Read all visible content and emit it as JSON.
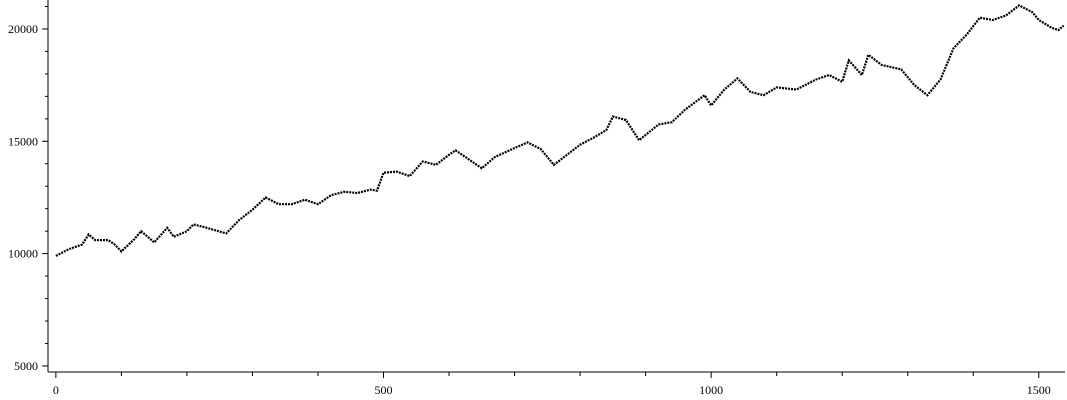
{
  "chart_data": {
    "type": "line",
    "color": "#000000",
    "x": [
      0,
      20,
      40,
      50,
      60,
      80,
      90,
      100,
      120,
      130,
      150,
      170,
      180,
      200,
      210,
      230,
      260,
      280,
      300,
      320,
      340,
      360,
      380,
      400,
      420,
      440,
      460,
      480,
      490,
      500,
      520,
      540,
      560,
      580,
      600,
      610,
      630,
      650,
      670,
      700,
      720,
      740,
      760,
      780,
      800,
      820,
      840,
      850,
      870,
      890,
      920,
      940,
      960,
      990,
      1000,
      1020,
      1040,
      1060,
      1080,
      1100,
      1130,
      1160,
      1180,
      1200,
      1210,
      1230,
      1240,
      1260,
      1290,
      1310,
      1330,
      1350,
      1370,
      1390,
      1410,
      1430,
      1450,
      1470,
      1490,
      1500,
      1520,
      1530,
      1538
    ],
    "values": [
      9900,
      10200,
      10400,
      10850,
      10600,
      10600,
      10400,
      10100,
      10650,
      11000,
      10500,
      11150,
      10750,
      11000,
      11300,
      11150,
      10900,
      11500,
      11950,
      12500,
      12200,
      12200,
      12400,
      12200,
      12600,
      12750,
      12700,
      12850,
      12800,
      13600,
      13650,
      13450,
      14100,
      13950,
      14400,
      14600,
      14200,
      13800,
      14300,
      14700,
      14950,
      14650,
      13950,
      14400,
      14850,
      15150,
      15500,
      16100,
      15950,
      15050,
      15750,
      15850,
      16400,
      17050,
      16600,
      17300,
      17800,
      17200,
      17050,
      17400,
      17300,
      17750,
      17950,
      17650,
      18600,
      17950,
      18850,
      18400,
      18200,
      17500,
      17050,
      17750,
      19150,
      19750,
      20500,
      20400,
      20600,
      21050,
      20750,
      20400,
      20050,
      19950,
      20150
    ],
    "xlim": [
      -12,
      1540
    ],
    "xticks": [
      0,
      500,
      1000,
      1500
    ],
    "xminorticks": [
      100,
      200,
      300,
      400,
      600,
      700,
      800,
      900,
      1100,
      1200,
      1300,
      1400
    ],
    "ylim": [
      4730,
      21290
    ],
    "yticks": [
      5000,
      10000,
      15000,
      20000
    ],
    "yminorticks": [
      6000,
      7000,
      8000,
      9000,
      11000,
      12000,
      13000,
      14000,
      16000,
      17000,
      18000,
      19000,
      21000
    ]
  }
}
